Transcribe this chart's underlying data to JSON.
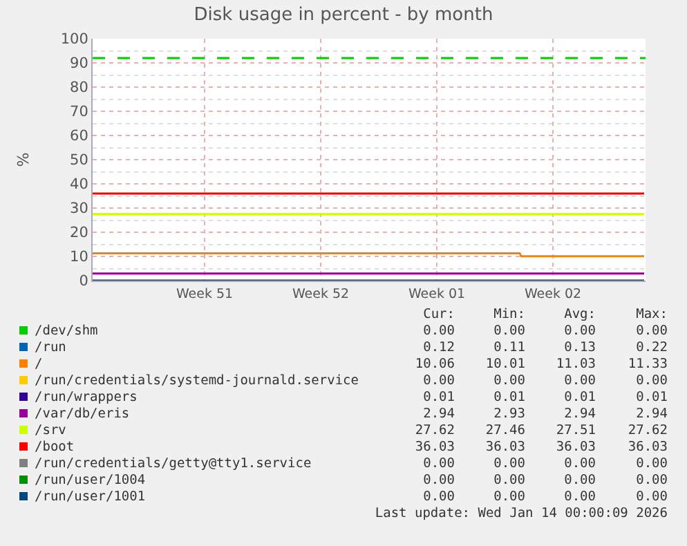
{
  "chart_data": {
    "type": "line",
    "title": "Disk usage in percent - by month",
    "ylabel": "%",
    "x": [
      "2025-12-11T18:00",
      "2026-01-14T00:00"
    ],
    "xlim": [
      "2025-12-11T18:00",
      "2026-01-14T02:00"
    ],
    "xticks": [
      {
        "value": "2025-12-18T12:00",
        "label": "Week 51"
      },
      {
        "value": "2025-12-25T12:00",
        "label": "Week 52"
      },
      {
        "value": "2026-01-01T12:00",
        "label": "Week 01"
      },
      {
        "value": "2026-01-08T12:00",
        "label": "Week 02"
      }
    ],
    "ylim": [
      0,
      100
    ],
    "yticks": [
      0,
      10,
      20,
      30,
      40,
      50,
      60,
      70,
      80,
      90,
      100
    ],
    "grid": true,
    "legend": "bottom",
    "series": [
      {
        "name": "/dev/shm",
        "color": "#00cc00",
        "values": [
          null,
          null
        ]
      },
      {
        "name": "/run",
        "color": "#0066b3",
        "values": [
          null,
          null
        ]
      },
      {
        "name": "/",
        "color": "#ff8000",
        "x": [
          "2025-12-11T18:00",
          "2026-01-06T12:00",
          "2026-01-06T14:00",
          "2026-01-14T00:00"
        ],
        "values": [
          11.3,
          11.3,
          10.1,
          10.1
        ]
      },
      {
        "name": "/run/credentials/systemd-journald.service",
        "color": "#ffcc00",
        "values": [
          null,
          null
        ]
      },
      {
        "name": "/run/wrappers",
        "color": "#330099",
        "values": [
          null,
          null
        ]
      },
      {
        "name": "/var/db/eris",
        "color": "#990099",
        "values": [
          2.9,
          2.9
        ]
      },
      {
        "name": "/srv",
        "color": "#ccff00",
        "values": [
          27.5,
          27.5
        ]
      },
      {
        "name": "/boot",
        "color": "#ff0000",
        "values": [
          36,
          36
        ]
      },
      {
        "name": "/run/credentials/getty@tty1.service",
        "color": "#808080",
        "values": [
          null,
          null
        ]
      },
      {
        "name": "/run/user/1004",
        "color": "#008f00",
        "values": [
          null,
          null
        ]
      },
      {
        "name": "/run/user/1001",
        "color": "#00487d",
        "values": [
          0,
          0
        ]
      }
    ],
    "ref_lines": [
      {
        "axis": "y",
        "value": 92,
        "label": null,
        "color": "#00cc00",
        "line_style": "dashed"
      }
    ],
    "annotations": [
      "Cur:",
      "Min:",
      "Avg:",
      "Max:",
      "0.00",
      "0.00",
      "0.00",
      "0.00",
      "0.12",
      "0.11",
      "0.13",
      "0.22",
      "10.06",
      "10.01",
      "11.03",
      "11.33",
      "0.00",
      "0.00",
      "0.00",
      "0.00",
      "0.01",
      "0.01",
      "0.01",
      "0.01",
      "2.94",
      "2.93",
      "2.94",
      "2.94",
      "27.62",
      "27.46",
      "27.51",
      "27.62",
      "36.03",
      "36.03",
      "36.03",
      "36.03",
      "0.00",
      "0.00",
      "0.00",
      "0.00",
      "0.00",
      "0.00",
      "0.00",
      "0.00",
      "0.00",
      "0.00",
      "0.00",
      "0.00",
      "Last update: Wed Jan 14 00:00:09 2026"
    ]
  }
}
